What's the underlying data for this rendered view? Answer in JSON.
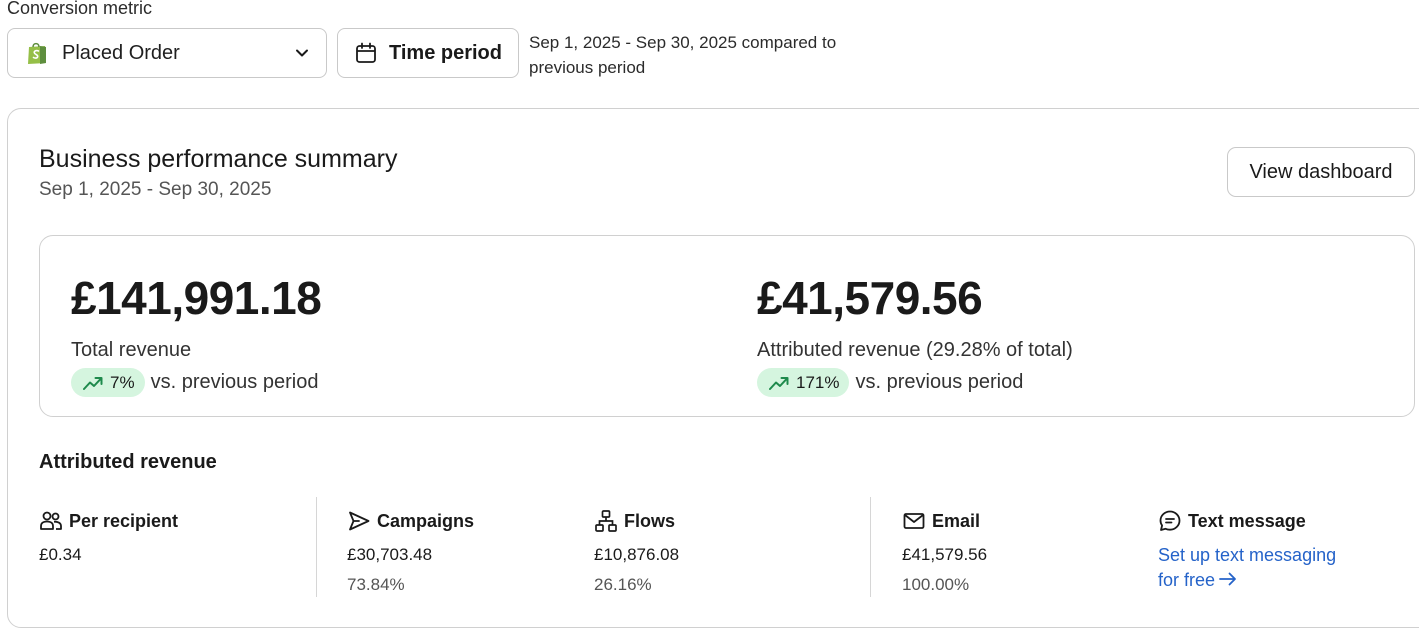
{
  "filters": {
    "metric_label": "Conversion metric",
    "metric_value": "Placed Order",
    "time_button": "Time period",
    "period_text": "Sep 1, 2025 - Sep 30, 2025 compared to previous period"
  },
  "summary": {
    "title": "Business performance summary",
    "subtitle": "Sep 1, 2025 - Sep 30, 2025",
    "view_button": "View dashboard",
    "total": {
      "value": "£141,991.18",
      "label": "Total revenue",
      "change": "7%",
      "change_suffix": "vs. previous period"
    },
    "attributed": {
      "value": "£41,579.56",
      "label": "Attributed revenue (29.28% of total)",
      "change": "171%",
      "change_suffix": "vs. previous period"
    }
  },
  "attributed_revenue": {
    "title": "Attributed revenue",
    "columns": [
      {
        "label": "Per recipient",
        "icon": "people-icon",
        "value": "£0.34",
        "pct": ""
      },
      {
        "label": "Campaigns",
        "icon": "send-icon",
        "value": "£30,703.48",
        "pct": "73.84%"
      },
      {
        "label": "Flows",
        "icon": "flows-icon",
        "value": "£10,876.08",
        "pct": "26.16%"
      },
      {
        "label": "Email",
        "icon": "mail-icon",
        "value": "£41,579.56",
        "pct": "100.00%"
      },
      {
        "label": "Text message",
        "icon": "chat-icon",
        "link": "Set up text messaging for free"
      }
    ]
  },
  "colors": {
    "accent_link": "#2563c9",
    "positive_pill": "#d5f5df",
    "positive_icon": "#1e8a4c",
    "shopify_green": "#95bf47"
  }
}
